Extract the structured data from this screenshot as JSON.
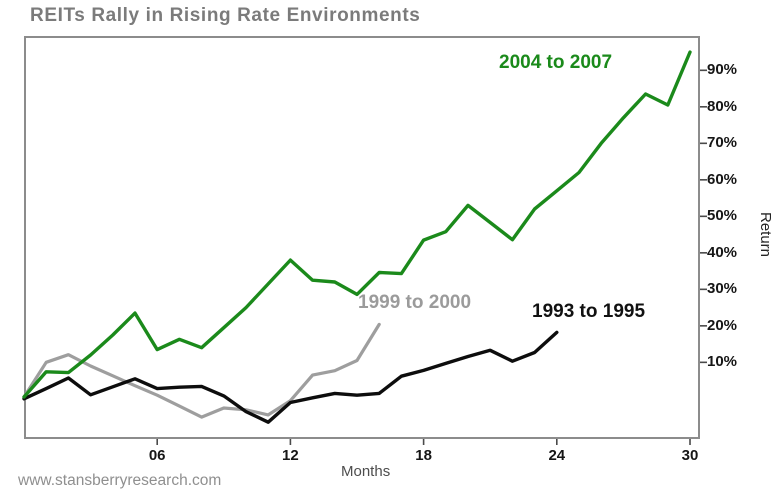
{
  "title": "REITs Rally in Rising Rate Environments",
  "watermark": "www.stansberryresearch.com",
  "axes": {
    "x_label": "Months",
    "y_label": "Return"
  },
  "colors": {
    "frame": "#8c8c8c",
    "tick": "#4a4a4a",
    "title_text": "#7b7b7b",
    "tick_text": "#161616"
  },
  "chart_data": {
    "type": "line",
    "title": "REITs Rally in Rising Rate Environments",
    "xlabel": "Months",
    "ylabel": "Return",
    "xlim": [
      0,
      30.45
    ],
    "ylim": [
      -11,
      99.4
    ],
    "grid": false,
    "legend_position": "inline-labels",
    "x_ticks": [
      {
        "value": 6,
        "label": "06"
      },
      {
        "value": 12,
        "label": "12"
      },
      {
        "value": 18,
        "label": "18"
      },
      {
        "value": 24,
        "label": "24"
      },
      {
        "value": 30,
        "label": "30"
      }
    ],
    "y_ticks": [
      {
        "value": 10,
        "label": "10%"
      },
      {
        "value": 20,
        "label": "20%"
      },
      {
        "value": 30,
        "label": "30%"
      },
      {
        "value": 40,
        "label": "40%"
      },
      {
        "value": 50,
        "label": "50%"
      },
      {
        "value": 60,
        "label": "60%"
      },
      {
        "value": 70,
        "label": "70%"
      },
      {
        "value": 80,
        "label": "80%"
      },
      {
        "value": 90,
        "label": "90%"
      }
    ],
    "series": [
      {
        "name": "2004 to 2007",
        "color": "#1b8a1b",
        "label_color": "#1b8a1b",
        "stroke_width": 3.4,
        "start_month": 0,
        "x_step_months": 1,
        "values": [
          0.5,
          7.4,
          7.2,
          12,
          17.5,
          23.5,
          13.5,
          16.3,
          14,
          19.5,
          25,
          31.5,
          38,
          32.5,
          32,
          28.6,
          34.6,
          34.3,
          43.5,
          45.8,
          53,
          48.3,
          43.6,
          52,
          57,
          62,
          70,
          77,
          83.5,
          80.5,
          95
        ]
      },
      {
        "name": "1999 to 2000",
        "color": "#9e9e9e",
        "label_color": "#9b9b9b",
        "stroke_width": 3.2,
        "start_month": 0,
        "x_step_months": 1,
        "values": [
          0.5,
          10,
          12.1,
          9,
          6.3,
          3.6,
          1,
          -2,
          -5,
          -2.5,
          -3,
          -4.4,
          -0.5,
          6.5,
          7.7,
          10.5,
          20.4
        ]
      },
      {
        "name": "1993 to 1995",
        "color": "#0d0d0d",
        "label_color": "#111111",
        "stroke_width": 3.4,
        "start_month": 0,
        "x_step_months": 1,
        "values": [
          0,
          2.8,
          5.7,
          1.1,
          3.3,
          5.5,
          2.8,
          3.2,
          3.4,
          0.8,
          -3.5,
          -6.4,
          -1,
          0.3,
          1.5,
          1,
          1.5,
          6.2,
          7.8,
          9.7,
          11.6,
          13.3,
          10.3,
          12.7,
          18.2
        ]
      }
    ]
  }
}
